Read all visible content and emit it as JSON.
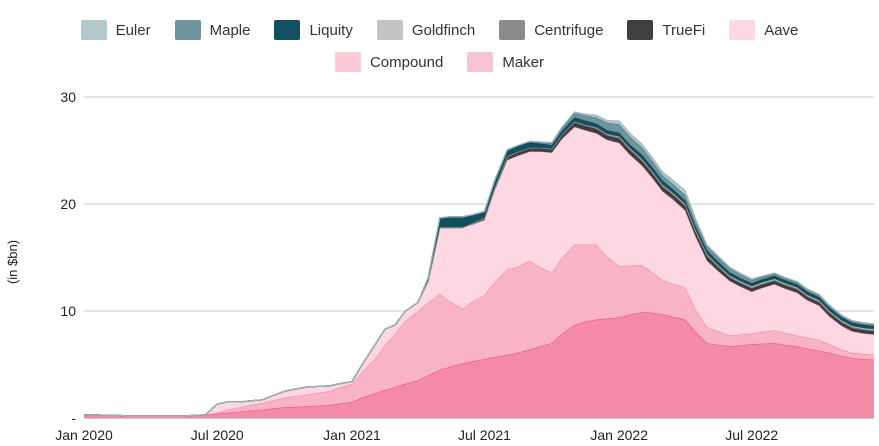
{
  "chart_data": {
    "type": "area",
    "stacked": true,
    "title": "",
    "xlabel": "",
    "ylabel": "(in $bn)",
    "ylim": [
      0,
      30
    ],
    "yticks": [
      0,
      10,
      20,
      30
    ],
    "ytick_labels": [
      "-",
      "10",
      "20",
      "30"
    ],
    "xtick_labels": [
      "Jan 2020",
      "Jul 2020",
      "Jan 2021",
      "Jul 2021",
      "Jan 2022",
      "Jul 2022"
    ],
    "xtick_dates": [
      "2020-01",
      "2020-07",
      "2021-01",
      "2021-07",
      "2022-01",
      "2022-07"
    ],
    "grid": "horizontal",
    "legend_position": "top",
    "x": [
      "2020-01-01",
      "2020-01-15",
      "2020-02-01",
      "2020-02-15",
      "2020-03-01",
      "2020-03-15",
      "2020-04-01",
      "2020-04-15",
      "2020-05-01",
      "2020-05-15",
      "2020-06-01",
      "2020-06-15",
      "2020-07-01",
      "2020-07-15",
      "2020-08-01",
      "2020-08-15",
      "2020-09-01",
      "2020-09-15",
      "2020-10-01",
      "2020-10-15",
      "2020-11-01",
      "2020-11-15",
      "2020-12-01",
      "2020-12-15",
      "2021-01-01",
      "2021-01-15",
      "2021-02-01",
      "2021-02-15",
      "2021-03-01",
      "2021-03-15",
      "2021-04-01",
      "2021-04-15",
      "2021-05-01",
      "2021-05-15",
      "2021-06-01",
      "2021-06-15",
      "2021-07-01",
      "2021-07-15",
      "2021-08-01",
      "2021-08-15",
      "2021-09-01",
      "2021-09-15",
      "2021-10-01",
      "2021-10-15",
      "2021-11-01",
      "2021-11-15",
      "2021-12-01",
      "2021-12-15",
      "2022-01-01",
      "2022-01-15",
      "2022-02-01",
      "2022-02-15",
      "2022-03-01",
      "2022-03-15",
      "2022-04-01",
      "2022-04-15",
      "2022-05-01",
      "2022-05-15",
      "2022-06-01",
      "2022-06-15",
      "2022-07-01",
      "2022-07-15",
      "2022-08-01",
      "2022-08-15",
      "2022-09-01",
      "2022-09-15",
      "2022-10-01",
      "2022-10-15",
      "2022-11-01",
      "2022-11-15",
      "2022-12-01",
      "2022-12-15"
    ],
    "series": [
      {
        "name": "Maker",
        "color": "#f7c4d2",
        "line": "#e8577d",
        "values": [
          0.3,
          0.3,
          0.25,
          0.25,
          0.2,
          0.2,
          0.2,
          0.2,
          0.2,
          0.2,
          0.25,
          0.3,
          0.4,
          0.5,
          0.6,
          0.7,
          0.8,
          0.9,
          1.0,
          1.05,
          1.1,
          1.15,
          1.2,
          1.35,
          1.5,
          1.9,
          2.3,
          2.6,
          2.9,
          3.2,
          3.5,
          4.0,
          4.5,
          4.8,
          5.1,
          5.3,
          5.5,
          5.7,
          5.9,
          6.1,
          6.4,
          6.7,
          7.0,
          7.9,
          8.7,
          9.0,
          9.2,
          9.3,
          9.4,
          9.65,
          9.9,
          9.85,
          9.7,
          9.45,
          9.2,
          8.1,
          7.0,
          6.85,
          6.7,
          6.8,
          6.9,
          6.95,
          7.0,
          6.85,
          6.7,
          6.5,
          6.3,
          6.1,
          5.8,
          5.6,
          5.5,
          5.45
        ]
      },
      {
        "name": "Compound",
        "color": "#f9ccd8",
        "line": "#ef8aa6",
        "values": [
          0,
          0,
          0,
          0,
          0,
          0,
          0,
          0,
          0,
          0,
          0,
          0,
          0.1,
          0.3,
          0.4,
          0.5,
          0.6,
          0.75,
          0.9,
          1.0,
          1.1,
          1.2,
          1.3,
          1.5,
          1.7,
          2.4,
          3.2,
          4.2,
          5.0,
          5.9,
          6.5,
          6.8,
          7.1,
          6.1,
          5.1,
          5.6,
          6.0,
          7.0,
          8.0,
          8.0,
          8.3,
          7.4,
          6.6,
          7.1,
          7.5,
          7.2,
          7.0,
          5.8,
          4.8,
          4.6,
          4.4,
          3.8,
          3.2,
          3.1,
          3.0,
          2.1,
          1.5,
          1.3,
          1.0,
          1.0,
          1.0,
          1.1,
          1.2,
          1.1,
          1.0,
          1.0,
          1.0,
          0.8,
          0.6,
          0.5,
          0.5,
          0.5
        ]
      },
      {
        "name": "Aave",
        "color": "#fdd8e2",
        "line": "#f7b3c6",
        "values": [
          0,
          0,
          0,
          0,
          0,
          0,
          0,
          0,
          0,
          0,
          0,
          0,
          0.8,
          0.7,
          0.5,
          0.4,
          0.3,
          0.45,
          0.6,
          0.65,
          0.7,
          0.6,
          0.5,
          0.35,
          0.2,
          0.7,
          1.3,
          1.5,
          0.8,
          0.9,
          0.8,
          2.0,
          6.2,
          6.9,
          7.6,
          7.2,
          7.0,
          8.6,
          10.2,
          10.4,
          10.2,
          10.8,
          11.2,
          11.1,
          11.0,
          10.7,
          10.4,
          10.9,
          11.5,
          10.4,
          9.3,
          8.8,
          8.3,
          7.9,
          7.2,
          6.8,
          6.2,
          5.65,
          5.1,
          4.5,
          3.9,
          4.1,
          4.3,
          4.15,
          4.0,
          3.5,
          3.2,
          2.6,
          2.2,
          2.0,
          1.9,
          1.85
        ]
      },
      {
        "name": "TrueFi",
        "color": "#3f3f3f",
        "line": "#2f2f2f",
        "values": [
          0,
          0,
          0,
          0,
          0,
          0,
          0,
          0,
          0,
          0,
          0,
          0,
          0,
          0,
          0,
          0,
          0,
          0,
          0,
          0,
          0,
          0,
          0,
          0,
          0,
          0,
          0,
          0,
          0,
          0,
          0,
          0,
          0,
          0,
          0,
          0.1,
          0.2,
          0.2,
          0.3,
          0.3,
          0.3,
          0.3,
          0.3,
          0.35,
          0.4,
          0.4,
          0.4,
          0.4,
          0.4,
          0.4,
          0.4,
          0.4,
          0.4,
          0.4,
          0.4,
          0.4,
          0.4,
          0.35,
          0.3,
          0.3,
          0.3,
          0.3,
          0.3,
          0.3,
          0.3,
          0.3,
          0.3,
          0.3,
          0.3,
          0.3,
          0.3,
          0.3
        ]
      },
      {
        "name": "Centrifuge",
        "color": "#8c8c8c",
        "line": "#777777",
        "values": [
          0,
          0,
          0,
          0,
          0,
          0,
          0,
          0,
          0,
          0,
          0,
          0,
          0,
          0,
          0,
          0,
          0,
          0,
          0,
          0,
          0,
          0,
          0,
          0,
          0,
          0,
          0,
          0,
          0,
          0,
          0,
          0,
          0,
          0,
          0,
          0,
          0,
          0,
          0.05,
          0.05,
          0.05,
          0.05,
          0.05,
          0.05,
          0.05,
          0.05,
          0.1,
          0.1,
          0.1,
          0.1,
          0.1,
          0.1,
          0.1,
          0.1,
          0.1,
          0.1,
          0.1,
          0.1,
          0.1,
          0.1,
          0.1,
          0.1,
          0.1,
          0.1,
          0.1,
          0.1,
          0.1,
          0.1,
          0.1,
          0.1,
          0.1,
          0.1
        ]
      },
      {
        "name": "Goldfinch",
        "color": "#c3c3c3",
        "line": "#a8a8a8",
        "values": [
          0,
          0,
          0,
          0,
          0,
          0,
          0,
          0,
          0,
          0,
          0,
          0,
          0,
          0,
          0,
          0,
          0,
          0,
          0,
          0,
          0,
          0,
          0,
          0,
          0,
          0,
          0,
          0,
          0,
          0,
          0,
          0,
          0,
          0,
          0,
          0,
          0,
          0,
          0,
          0,
          0,
          0,
          0,
          0,
          0.05,
          0.05,
          0.05,
          0.05,
          0.1,
          0.1,
          0.1,
          0.1,
          0.1,
          0.1,
          0.1,
          0.1,
          0.1,
          0.1,
          0.1,
          0.1,
          0.1,
          0.1,
          0.1,
          0.1,
          0.1,
          0.1,
          0.1,
          0.1,
          0.1,
          0.1,
          0.1,
          0.1
        ]
      },
      {
        "name": "Liquity",
        "color": "#13505f",
        "line": "#0e3d49",
        "values": [
          0,
          0,
          0,
          0,
          0,
          0,
          0,
          0,
          0,
          0,
          0,
          0,
          0,
          0,
          0,
          0,
          0,
          0,
          0,
          0,
          0,
          0,
          0,
          0,
          0,
          0,
          0,
          0,
          0,
          0,
          0,
          0.3,
          0.9,
          1.0,
          1.0,
          0.8,
          0.6,
          0.7,
          0.6,
          0.6,
          0.5,
          0.4,
          0.35,
          0.35,
          0.4,
          0.4,
          0.35,
          0.35,
          0.35,
          0.35,
          0.4,
          0.4,
          0.4,
          0.35,
          0.35,
          0.35,
          0.35,
          0.35,
          0.3,
          0.3,
          0.3,
          0.3,
          0.3,
          0.3,
          0.3,
          0.3,
          0.3,
          0.3,
          0.3,
          0.3,
          0.3,
          0.3
        ]
      },
      {
        "name": "Maple",
        "color": "#6e949d",
        "line": "#557c86",
        "values": [
          0,
          0,
          0,
          0,
          0,
          0,
          0,
          0,
          0,
          0,
          0,
          0,
          0,
          0,
          0,
          0,
          0,
          0,
          0,
          0,
          0,
          0,
          0,
          0,
          0,
          0,
          0,
          0,
          0,
          0,
          0,
          0,
          0,
          0,
          0,
          0,
          0,
          0,
          0,
          0,
          0.1,
          0.15,
          0.2,
          0.3,
          0.4,
          0.5,
          0.6,
          0.7,
          0.8,
          0.75,
          0.7,
          0.6,
          0.5,
          0.5,
          0.5,
          0.45,
          0.4,
          0.4,
          0.4,
          0.35,
          0.3,
          0.25,
          0.2,
          0.2,
          0.2,
          0.2,
          0.2,
          0.2,
          0.15,
          0.15,
          0.15,
          0.15
        ]
      },
      {
        "name": "Euler",
        "color": "#b4c8cc",
        "line": "#9fb7bc",
        "values": [
          0,
          0,
          0,
          0,
          0,
          0,
          0,
          0,
          0,
          0,
          0,
          0,
          0,
          0,
          0,
          0,
          0,
          0,
          0,
          0,
          0,
          0,
          0,
          0,
          0,
          0,
          0,
          0,
          0,
          0,
          0,
          0,
          0,
          0,
          0,
          0,
          0,
          0,
          0,
          0,
          0,
          0,
          0.05,
          0.05,
          0.1,
          0.1,
          0.2,
          0.2,
          0.3,
          0.3,
          0.3,
          0.3,
          0.3,
          0.35,
          0.4,
          0.25,
          0.1,
          0.1,
          0.1,
          0.1,
          0.1,
          0.05,
          0.05,
          0.05,
          0.05,
          0.05,
          0.05,
          0.05,
          0.05,
          0.05,
          0.05,
          0.05
        ]
      }
    ]
  },
  "legend": {
    "row1": [
      {
        "label": "Euler",
        "color": "#b4c8cc"
      },
      {
        "label": "Maple",
        "color": "#6e949d"
      },
      {
        "label": "Liquity",
        "color": "#13505f"
      },
      {
        "label": "Goldfinch",
        "color": "#c3c3c3"
      },
      {
        "label": "Centrifuge",
        "color": "#8c8c8c"
      },
      {
        "label": "TrueFi",
        "color": "#3f3f3f"
      },
      {
        "label": "Aave",
        "color": "#fdd8e2"
      }
    ],
    "row2": [
      {
        "label": "Compound",
        "color": "#f9ccd8"
      },
      {
        "label": "Maker",
        "color": "#f7c4d2"
      }
    ]
  },
  "colors": {
    "grid": "#c8c8c8",
    "axis": "#9a9a9a",
    "maker_fill": "#f48aa8",
    "compound_fill": "#f9b3c6",
    "aave_fill": "#fdd8e2",
    "maker_line": "#e8577d"
  }
}
